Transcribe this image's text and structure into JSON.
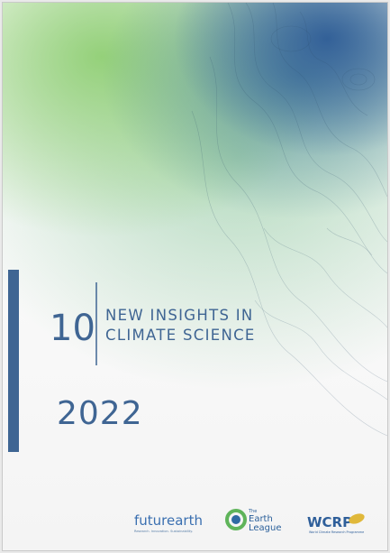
{
  "cover": {
    "number": "10",
    "title_lines": [
      "NEW INSIGHTS IN",
      "CLIMATE SCIENCE"
    ],
    "year": "2022"
  },
  "logos": {
    "futurearth": {
      "name": "futurearth",
      "tagline": "Research. Innovation. Sustainability."
    },
    "earth_league": {
      "lines": [
        "The",
        "Earth",
        "League"
      ]
    },
    "wcrp": {
      "name": "WCRP",
      "tagline": "World Climate Research Programme"
    }
  }
}
